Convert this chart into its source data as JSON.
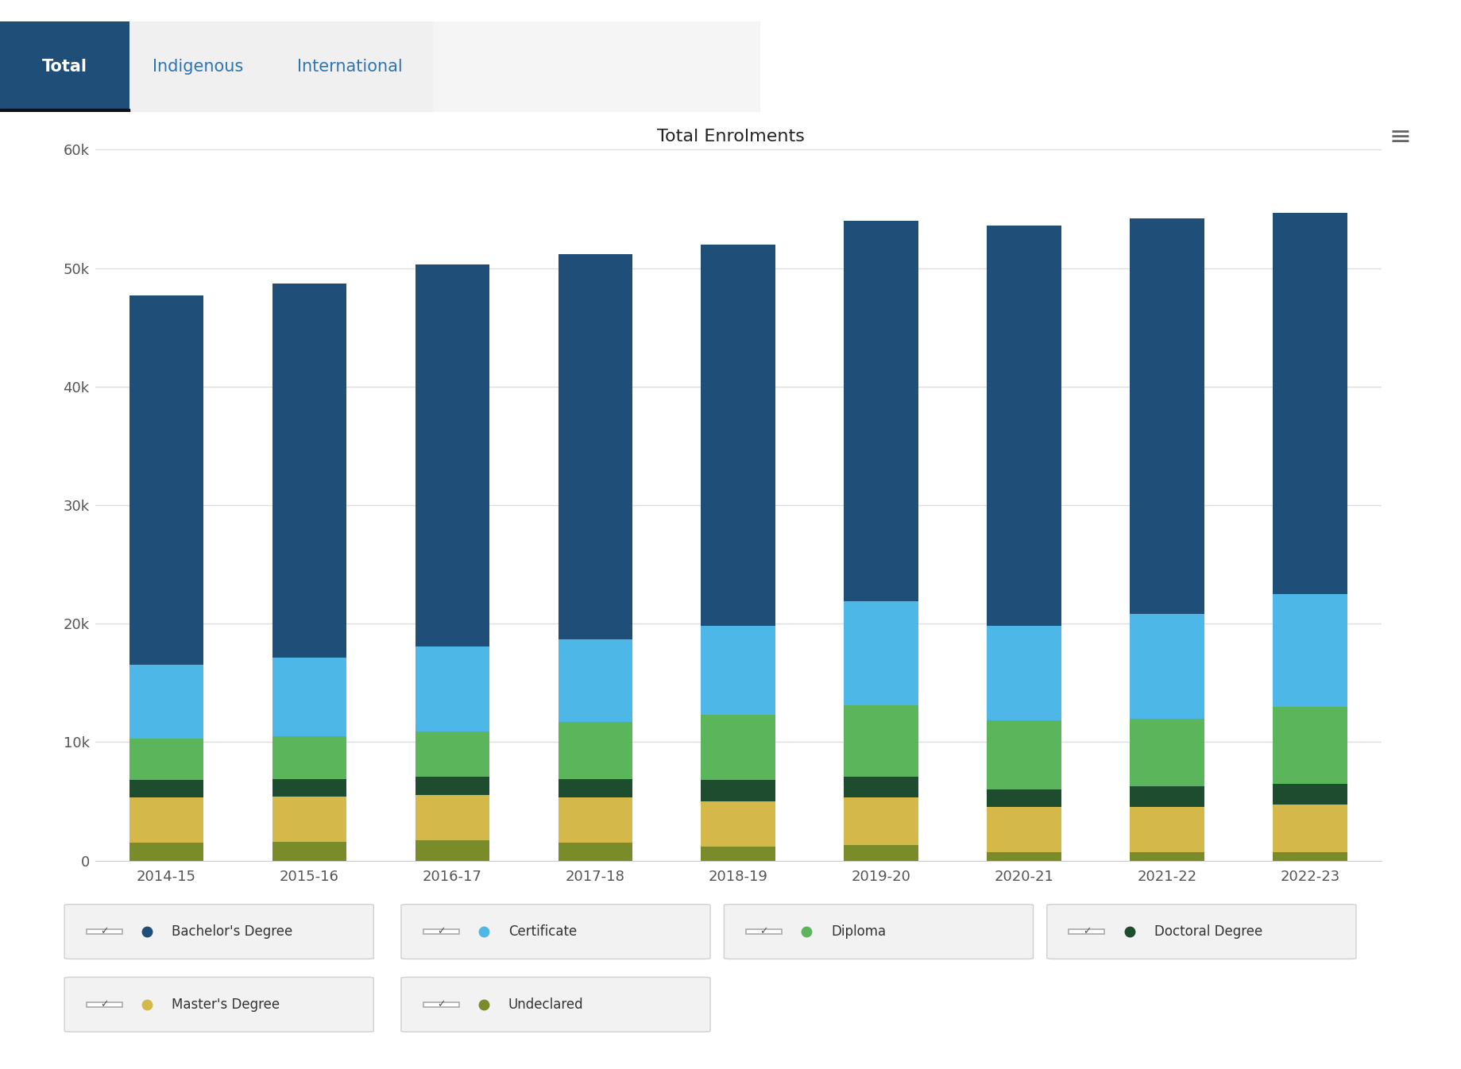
{
  "title": "Total Enrolments",
  "categories": [
    "2014-15",
    "2015-16",
    "2016-17",
    "2017-18",
    "2018-19",
    "2019-20",
    "2020-21",
    "2021-22",
    "2022-23"
  ],
  "series": {
    "Undeclared": [
      1500,
      1600,
      1700,
      1500,
      1200,
      1300,
      700,
      700,
      700
    ],
    "Master's Degree": [
      3800,
      3800,
      3800,
      3800,
      3800,
      4000,
      3800,
      3800,
      4000
    ],
    "Doctoral Degree": [
      1500,
      1500,
      1600,
      1600,
      1800,
      1800,
      1500,
      1800,
      1800
    ],
    "Diploma": [
      3500,
      3600,
      3800,
      4800,
      5500,
      6000,
      5800,
      5700,
      6500
    ],
    "Certificate": [
      6200,
      6600,
      7200,
      7000,
      7500,
      8800,
      8000,
      8800,
      9500
    ],
    "Bachelor's Degree": [
      31200,
      31600,
      32200,
      32500,
      32200,
      32100,
      33800,
      33400,
      32200
    ]
  },
  "colors": {
    "Undeclared": "#7A8C2A",
    "Master's Degree": "#D4B94A",
    "Doctoral Degree": "#1D4C2E",
    "Diploma": "#5BB55A",
    "Certificate": "#4DB8E8",
    "Bachelor's Degree": "#1F4E79"
  },
  "ylim": [
    0,
    60000
  ],
  "yticks": [
    0,
    10000,
    20000,
    30000,
    40000,
    50000,
    60000
  ],
  "ytick_labels": [
    "0",
    "10k",
    "20k",
    "30k",
    "40k",
    "50k",
    "60k"
  ],
  "grid_color": "#dddddd",
  "title_fontsize": 16,
  "tab_labels": [
    "Total",
    "Indigenous",
    "International"
  ],
  "tab_bg_colors": [
    "#1F4E79",
    "#f0f0f0",
    "#f0f0f0"
  ],
  "tab_text_colors": [
    "#ffffff",
    "#2E75B6",
    "#2E75B6"
  ],
  "legend_entries": [
    [
      "Bachelor's Degree",
      "#1F4E79"
    ],
    [
      "Certificate",
      "#4DB8E8"
    ],
    [
      "Diploma",
      "#5BB55A"
    ],
    [
      "Doctoral Degree",
      "#1D4C2E"
    ],
    [
      "Master's Degree",
      "#D4B94A"
    ],
    [
      "Undeclared",
      "#7A8C2A"
    ]
  ]
}
